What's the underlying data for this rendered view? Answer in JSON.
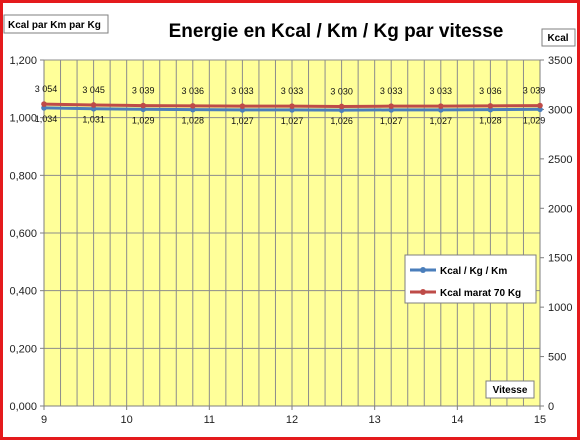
{
  "chart_data": {
    "type": "line",
    "title": "Energie en Kcal / Km / Kg par vitesse",
    "left_axis_title": "Kcal par Km par Kg",
    "right_axis_title": "Kcal",
    "xlabel": "Vitesse",
    "x": [
      9,
      9.6,
      10.2,
      10.8,
      11.4,
      12,
      12.6,
      13.2,
      13.8,
      14.4,
      15
    ],
    "xlim": [
      9,
      15
    ],
    "x_ticks": [
      "9",
      "10",
      "11",
      "12",
      "13",
      "14",
      "15"
    ],
    "y_left_lim": [
      0,
      1.2
    ],
    "y_left_ticks": [
      "0,000",
      "0,200",
      "0,400",
      "0,600",
      "0,800",
      "1,000",
      "1,200"
    ],
    "y_right_lim": [
      0,
      3500
    ],
    "y_right_ticks": [
      "0",
      "500",
      "1000",
      "1500",
      "2000",
      "2500",
      "3000",
      "3500"
    ],
    "grid": true,
    "legend_position": "right",
    "series": [
      {
        "name": "Kcal / Kg / Km",
        "axis": "left",
        "color": "#4a7ebb",
        "values": [
          1.034,
          1.031,
          1.029,
          1.028,
          1.027,
          1.027,
          1.026,
          1.027,
          1.027,
          1.028,
          1.029
        ],
        "labels": [
          "1,034",
          "1,031",
          "1,029",
          "1,028",
          "1,027",
          "1,027",
          "1,026",
          "1,027",
          "1,027",
          "1,028",
          "1,029"
        ]
      },
      {
        "name": "Kcal marat 70 Kg",
        "axis": "right",
        "color": "#be4b48",
        "values": [
          3054,
          3045,
          3039,
          3036,
          3033,
          3033,
          3030,
          3033,
          3033,
          3036,
          3039
        ],
        "labels": [
          "3 054",
          "3 045",
          "3 039",
          "3 036",
          "3 033",
          "3 033",
          "3 030",
          "3 033",
          "3 033",
          "3 036",
          "3 039"
        ]
      }
    ]
  }
}
